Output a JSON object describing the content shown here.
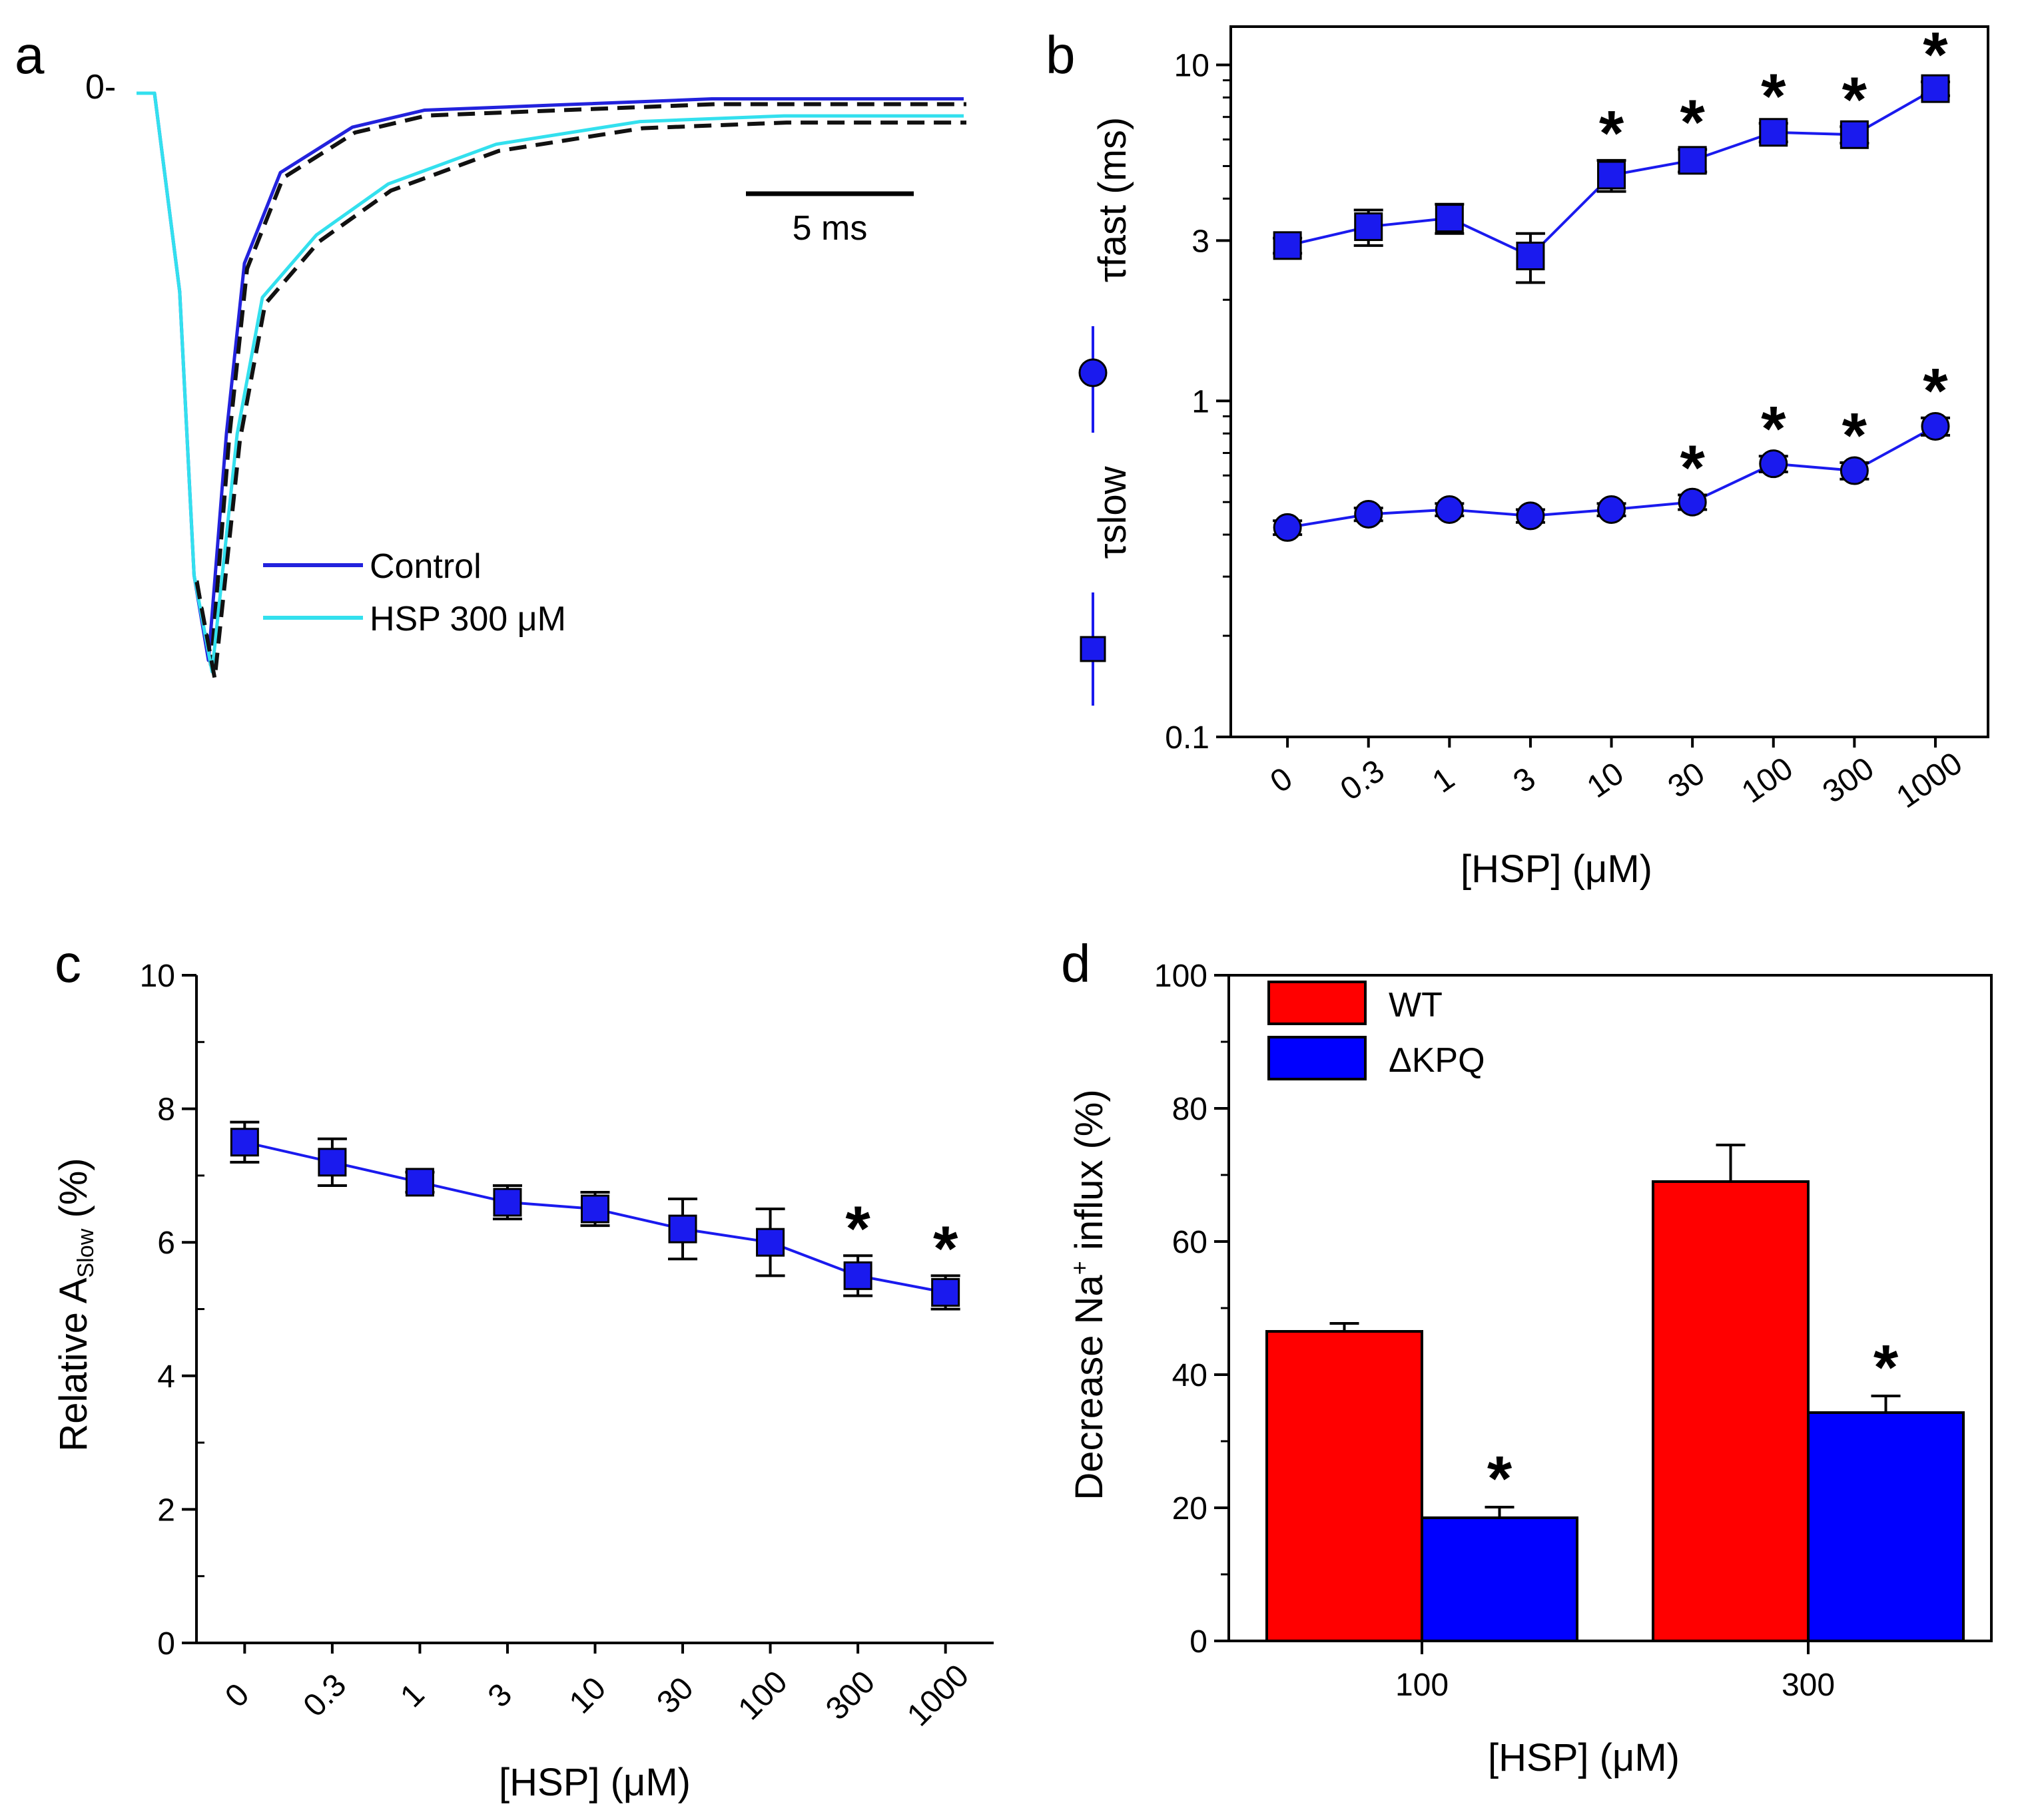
{
  "colors": {
    "blue_series": "#1a1aee",
    "control_trace": "#2222dd",
    "hsp_trace": "#33e0ee",
    "fit_dash": "#111111",
    "wt_bar": "#ff0000",
    "dkpq_bar": "#0000ff"
  },
  "chart_data": [
    {
      "panel": "a",
      "type": "line",
      "zero_label": "0-",
      "scale_bar_label": "5 ms",
      "legend": [
        "Control",
        "HSP 300 μM"
      ],
      "series": [
        {
          "name": "Control",
          "t_ms": [
            0,
            0.5,
            1.2,
            1.6,
            2.0,
            2.5,
            3.0,
            4.0,
            6.0,
            8.0,
            12.0,
            16.0,
            20.0,
            23.0
          ],
          "current_norm": [
            0,
            0,
            -0.35,
            -0.85,
            -1.0,
            -0.6,
            -0.3,
            -0.14,
            -0.06,
            -0.03,
            -0.02,
            -0.01,
            -0.01,
            -0.01
          ]
        },
        {
          "name": "HSP 300 μM",
          "t_ms": [
            0,
            0.5,
            1.2,
            1.6,
            2.1,
            2.8,
            3.5,
            5.0,
            7.0,
            10.0,
            14.0,
            18.0,
            23.0
          ],
          "current_norm": [
            0,
            0,
            -0.35,
            -0.85,
            -1.02,
            -0.6,
            -0.36,
            -0.25,
            -0.16,
            -0.09,
            -0.05,
            -0.04,
            -0.04
          ]
        }
      ]
    },
    {
      "panel": "b",
      "type": "line",
      "scale": "log",
      "xlabel": "[HSP] (μM)",
      "ylabel_fast": "τfast (ms)",
      "ylabel_slow": "τslow",
      "ylim": [
        0.1,
        13
      ],
      "yticks": [
        0.1,
        1,
        3,
        10
      ],
      "ytick_labels": [
        "0.1",
        "1",
        "3",
        "10"
      ],
      "categories": [
        "0",
        "0.3",
        "1",
        "3",
        "10",
        "30",
        "100",
        "300",
        "1000"
      ],
      "series": [
        {
          "name": "τfast",
          "marker": "square",
          "values": [
            2.9,
            3.3,
            3.5,
            2.7,
            4.7,
            5.2,
            6.3,
            6.2,
            8.5
          ],
          "errors": [
            0.15,
            0.4,
            0.35,
            0.45,
            0.5,
            0.4,
            0.4,
            0.35,
            0.4
          ],
          "significant": [
            false,
            false,
            false,
            false,
            true,
            true,
            true,
            true,
            true
          ]
        },
        {
          "name": "τslow",
          "marker": "circle",
          "values": [
            0.42,
            0.46,
            0.475,
            0.455,
            0.475,
            0.5,
            0.65,
            0.62,
            0.84
          ],
          "errors": [
            0.02,
            0.02,
            0.02,
            0.02,
            0.02,
            0.025,
            0.035,
            0.035,
            0.05
          ],
          "significant": [
            false,
            false,
            false,
            false,
            false,
            true,
            true,
            true,
            true
          ]
        }
      ]
    },
    {
      "panel": "c",
      "type": "line",
      "xlabel": "[HSP] (μM)",
      "ylabel": "Relative A",
      "ylabel_sub": "Slow",
      "ylabel_unit": " (%)",
      "ylim": [
        0,
        10
      ],
      "yticks": [
        0,
        2,
        4,
        6,
        8,
        10
      ],
      "categories": [
        "0",
        "0.3",
        "1",
        "3",
        "10",
        "30",
        "100",
        "300",
        "1000"
      ],
      "series": [
        {
          "name": "Relative A Slow",
          "marker": "square",
          "values": [
            7.5,
            7.2,
            6.9,
            6.6,
            6.5,
            6.2,
            6.0,
            5.5,
            5.25
          ],
          "errors": [
            0.3,
            0.35,
            0.15,
            0.25,
            0.25,
            0.45,
            0.5,
            0.3,
            0.25
          ],
          "significant": [
            false,
            false,
            false,
            false,
            false,
            false,
            false,
            true,
            true
          ]
        }
      ]
    },
    {
      "panel": "d",
      "type": "bar",
      "xlabel": "[HSP] (μM)",
      "ylabel": "Decrease Na",
      "ylabel_sup": "+",
      "ylabel_tail": " influx (%)",
      "ylim": [
        0,
        100
      ],
      "yticks": [
        0,
        20,
        40,
        60,
        80,
        100
      ],
      "categories": [
        "100",
        "300"
      ],
      "legend": [
        "WT",
        "ΔKPQ"
      ],
      "series": [
        {
          "name": "WT",
          "values": [
            46.5,
            69
          ],
          "errors": [
            1.2,
            5.5
          ],
          "significant": [
            false,
            false
          ]
        },
        {
          "name": "ΔKPQ",
          "values": [
            18.5,
            34.3
          ],
          "errors": [
            1.6,
            2.5
          ],
          "significant": [
            true,
            true
          ]
        }
      ]
    }
  ],
  "significance_marker": "*"
}
